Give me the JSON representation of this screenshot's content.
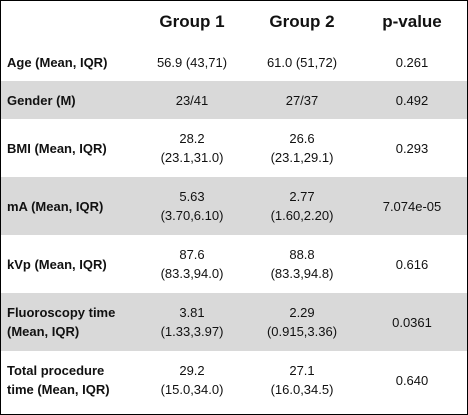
{
  "table": {
    "headers": [
      "",
      "Group 1",
      "Group 2",
      "p-value"
    ],
    "rows": [
      {
        "label": "Age (Mean, IQR)",
        "g1": "56.9 (43,71)",
        "g2": "61.0 (51,72)",
        "p": "0.261"
      },
      {
        "label": "Gender (M)",
        "g1": "23/41",
        "g2": "27/37",
        "p": "0.492"
      },
      {
        "label_l1": "BMI (Mean, IQR)",
        "g1_l1": "28.2",
        "g1_l2": "(23.1,31.0)",
        "g2_l1": "26.6",
        "g2_l2": "(23.1,29.1)",
        "p": "0.293"
      },
      {
        "label_l1": "mA (Mean, IQR)",
        "g1_l1": "5.63",
        "g1_l2": "(3.70,6.10)",
        "g2_l1": "2.77",
        "g2_l2": "(1.60,2.20)",
        "p": "7.074e-05"
      },
      {
        "label_l1": "kVp (Mean, IQR)",
        "g1_l1": "87.6",
        "g1_l2": "(83.3,94.0)",
        "g2_l1": "88.8",
        "g2_l2": "(83.3,94.8)",
        "p": "0.616"
      },
      {
        "label_l1": "Fluoroscopy time",
        "label_l2": "(Mean, IQR)",
        "g1_l1": "3.81",
        "g1_l2": "(1.33,3.97)",
        "g2_l1": "2.29",
        "g2_l2": "(0.915,3.36)",
        "p": "0.0361"
      },
      {
        "label_l1": "Total procedure",
        "label_l2": "time (Mean, IQR)",
        "g1_l1": "29.2",
        "g1_l2": "(15.0,34.0)",
        "g2_l1": "27.1",
        "g2_l2": "(16.0,34.5)",
        "p": "0.640"
      }
    ]
  }
}
